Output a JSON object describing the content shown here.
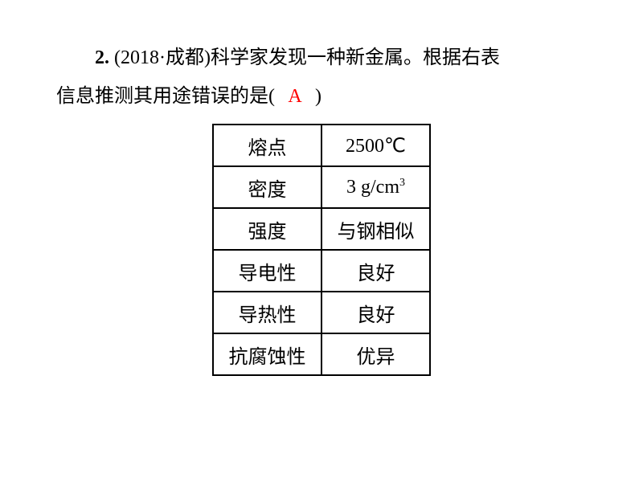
{
  "question": {
    "number": "2.",
    "source": "(2018·成都)",
    "text_part1": "科学家发现一种新金属。根据右表",
    "text_part2": "信息推测其用途错误的是(",
    "text_part3": ")",
    "answer": "A"
  },
  "table": {
    "type": "table",
    "border_color": "#000000",
    "background_color": "#ffffff",
    "text_color": "#000000",
    "cell_fontsize": 24,
    "columns": [
      "property",
      "value"
    ],
    "rows": [
      {
        "property": "熔点",
        "value": "2500℃"
      },
      {
        "property": "密度",
        "value_prefix": "3 g/cm",
        "value_sup": "3"
      },
      {
        "property": "强度",
        "value": "与钢相似"
      },
      {
        "property": "导电性",
        "value": "良好"
      },
      {
        "property": "导热性",
        "value": "良好"
      },
      {
        "property": "抗腐蚀性",
        "value": "优异"
      }
    ]
  },
  "colors": {
    "answer_color": "#ff0000",
    "text_color": "#000000",
    "background": "#ffffff"
  }
}
